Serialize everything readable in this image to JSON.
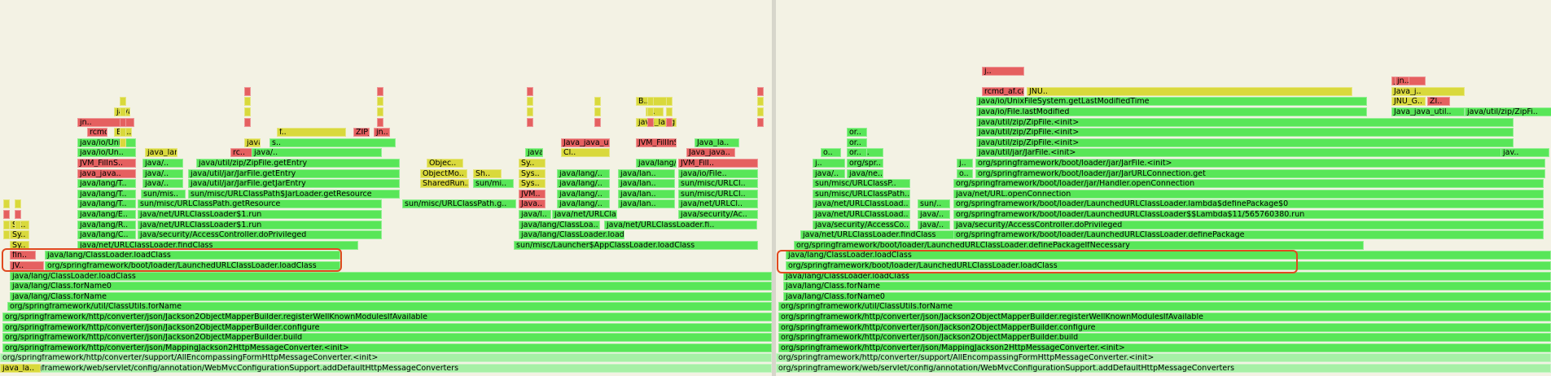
{
  "colors": {
    "background": "#f3f2e4",
    "green": "#58e658",
    "yellow": "#d9d93c",
    "red": "#e56060",
    "light": "#a6f0a6",
    "highlight": "#e04a20"
  },
  "left": {
    "frames": [
      {
        "label": "org/springframework/web/servlet/config/annotation/WebMvcConfigurationSupport.addDefaultHttpMessageConverters",
        "c": "light"
      },
      {
        "label": "org/springframework/http/converter/support/AllEncompassingFormHttpMessageConverter.<init>",
        "c": "light"
      },
      {
        "label": "org/springframework/http/converter/json/MappingJackson2HttpMessageConverter.<init>",
        "c": "green"
      },
      {
        "label": "org/springframework/http/converter/json/Jackson2ObjectMapperBuilder.build",
        "c": "green"
      },
      {
        "label": "org/springframework/http/converter/json/Jackson2ObjectMapperBuilder.configure",
        "c": "green"
      },
      {
        "label": "org/springframework/http/converter/json/Jackson2ObjectMapperBuilder.registerWellKnownModulesIfAvailable",
        "c": "green"
      },
      {
        "label": "org/springframework/util/ClassUtils.forName",
        "c": "green"
      },
      {
        "label": "java/lang/Class.forName",
        "c": "green"
      },
      {
        "label": "java/lang/Class.forName0",
        "c": "green"
      },
      {
        "label": "java/lang/ClassLoader.loadClass",
        "c": "green"
      },
      {
        "label": "JV..",
        "c": "red"
      },
      {
        "label": "org/springframework/boot/loader/LaunchedURLClassLoader.loadClass",
        "c": "green"
      },
      {
        "label": "fin..",
        "c": "red"
      },
      {
        "label": "java/lang/ClassLoader.loadClass",
        "c": "green"
      },
      {
        "label": "Sy..",
        "c": "yellow"
      },
      {
        "label": "java/net/URLClassLoader.findClass",
        "c": "green"
      },
      {
        "label": "sun/misc/Launcher$AppClassLoader.loadClass",
        "c": "green"
      },
      {
        "label": "Sy..",
        "c": "yellow"
      },
      {
        "label": "java/lang/C..",
        "c": "green"
      },
      {
        "label": "java/security/AccessController.doPrivileged",
        "c": "green"
      },
      {
        "label": "java/lang/ClassLoader.loadClass",
        "c": "green"
      },
      {
        "label": "Sy..",
        "c": "yellow"
      },
      {
        "label": "java/lang/R..",
        "c": "green"
      },
      {
        "label": "java/net/URLClassLoader$1.run",
        "c": "green"
      },
      {
        "label": "java/lang/ClassLoa..",
        "c": "green"
      },
      {
        "label": "java/net/URLClassLoader.fi..",
        "c": "green"
      },
      {
        "label": "java/lang/E..",
        "c": "green"
      },
      {
        "label": "java/net/URLClassLoader$1.run",
        "c": "green"
      },
      {
        "label": "java/l..",
        "c": "green"
      },
      {
        "label": "java/net/URLCla..",
        "c": "green"
      },
      {
        "label": "java/security/Ac..",
        "c": "green"
      },
      {
        "label": "java/lang/T..",
        "c": "green"
      },
      {
        "label": "sun/misc/URLClassPath.getResource",
        "c": "green"
      },
      {
        "label": "sun/misc/URLClassPath.g..",
        "c": "green"
      },
      {
        "label": "Java..",
        "c": "red"
      },
      {
        "label": "java/lang/..",
        "c": "green"
      },
      {
        "label": "java/lan..",
        "c": "green"
      },
      {
        "label": "java/net/URLCl..",
        "c": "green"
      },
      {
        "label": "java/lang/T..",
        "c": "green"
      },
      {
        "label": "sun/mis..",
        "c": "green"
      },
      {
        "label": "sun/misc/URLClassPath$JarLoader.getResource",
        "c": "green"
      },
      {
        "label": "JVM..",
        "c": "red"
      },
      {
        "label": "java/lang/..",
        "c": "green"
      },
      {
        "label": "java/lan..",
        "c": "green"
      },
      {
        "label": "sun/misc/URLCl..",
        "c": "green"
      },
      {
        "label": "java/lang/T..",
        "c": "green"
      },
      {
        "label": "java/..",
        "c": "green"
      },
      {
        "label": "java/util/jar/JarFile.getJarEntry",
        "c": "green"
      },
      {
        "label": "SharedRun..",
        "c": "yellow"
      },
      {
        "label": "sun/mi..",
        "c": "green"
      },
      {
        "label": "Sys..",
        "c": "yellow"
      },
      {
        "label": "java/lang/..",
        "c": "green"
      },
      {
        "label": "java/lan..",
        "c": "green"
      },
      {
        "label": "sun/misc/URLCl..",
        "c": "green"
      },
      {
        "label": "java_java..",
        "c": "red"
      },
      {
        "label": "java/..",
        "c": "green"
      },
      {
        "label": "java/util/jar/JarFile.getEntry",
        "c": "green"
      },
      {
        "label": "ObjectMo..",
        "c": "yellow"
      },
      {
        "label": "Sh..",
        "c": "yellow"
      },
      {
        "label": "Sys..",
        "c": "yellow"
      },
      {
        "label": "java/lang/..",
        "c": "green"
      },
      {
        "label": "java/lan..",
        "c": "green"
      },
      {
        "label": "java/io/File..",
        "c": "green"
      },
      {
        "label": "JVM_FillnS..",
        "c": "red"
      },
      {
        "label": "java/..",
        "c": "green"
      },
      {
        "label": "java/util/zip/ZipFile.getEntry",
        "c": "green"
      },
      {
        "label": "Objec..",
        "c": "yellow"
      },
      {
        "label": "Sy..",
        "c": "yellow"
      },
      {
        "label": "java/lang/..",
        "c": "green"
      },
      {
        "label": "JVM_Fill..",
        "c": "red"
      },
      {
        "label": "java/io/Un..",
        "c": "green"
      },
      {
        "label": "java_lang..",
        "c": "yellow"
      },
      {
        "label": "rc..",
        "c": "red"
      },
      {
        "label": "java/..",
        "c": "green"
      },
      {
        "label": "java/util/zip/ZipFile.getEntry",
        "c": "green"
      },
      {
        "label": "Cl..",
        "c": "yellow"
      },
      {
        "label": "Java_java..",
        "c": "red"
      },
      {
        "label": "java/io/Uni..",
        "c": "green"
      },
      {
        "label": "java_lang..",
        "c": "yellow"
      },
      {
        "label": "s..",
        "c": "green"
      },
      {
        "label": "Java_java_util_zip_ZipFile_g..",
        "c": "red"
      },
      {
        "label": "JVM_FillInS..",
        "c": "red"
      },
      {
        "label": "Java_la..",
        "c": "green"
      },
      {
        "label": "rcmd_af..",
        "c": "red"
      },
      {
        "label": "Ba..",
        "c": "yellow"
      },
      {
        "label": "f..",
        "c": "yellow"
      },
      {
        "label": "ZIP_GetEntry2",
        "c": "red"
      },
      {
        "label": "jn..",
        "c": "red"
      },
      {
        "label": "jn..",
        "c": "red"
      },
      {
        "label": "java_lang..",
        "c": "yellow"
      },
      {
        "label": "java_la..",
        "c": "yellow"
      },
      {
        "label": "f..",
        "c": "yellow"
      },
      {
        "label": "B..",
        "c": "yellow"
      },
      {
        "label": "java_la..",
        "c": "yellow"
      }
    ],
    "highlight_label": "left-highlight"
  },
  "right": {
    "frames": [
      {
        "label": "org/springframework/web/servlet/config/annotation/WebMvcConfigurationSupport.addDefaultHttpMessageConverters",
        "c": "light"
      },
      {
        "label": "org/springframework/http/converter/support/AllEncompassingFormHttpMessageConverter.<init>",
        "c": "light"
      },
      {
        "label": "org/springframework/http/converter/json/MappingJackson2HttpMessageConverter.<init>",
        "c": "green"
      },
      {
        "label": "org/springframework/http/converter/json/Jackson2ObjectMapperBuilder.build",
        "c": "green"
      },
      {
        "label": "org/springframework/http/converter/json/Jackson2ObjectMapperBuilder.configure",
        "c": "green"
      },
      {
        "label": "org/springframework/http/converter/json/Jackson2ObjectMapperBuilder.registerWellKnownModulesIfAvailable",
        "c": "green"
      },
      {
        "label": "org/springframework/util/ClassUtils.forName",
        "c": "green"
      },
      {
        "label": "java/lang/Class.forName0",
        "c": "green"
      },
      {
        "label": "java/lang/Class.forName",
        "c": "green"
      },
      {
        "label": "java/lang/ClassLoader.loadClass",
        "c": "green"
      },
      {
        "label": "org/springframework/boot/loader/LaunchedURLClassLoader.loadClass",
        "c": "green"
      },
      {
        "label": "java/lang/ClassLoader.loadClass",
        "c": "green"
      },
      {
        "label": "org/springframework/boot/loader/LaunchedURLClassLoader.definePackageIfNecessary",
        "c": "green"
      },
      {
        "label": "java/net/URLClassLoader.findClass",
        "c": "green"
      },
      {
        "label": "org/springframework/boot/loader/LaunchedURLClassLoader.definePackage",
        "c": "green"
      },
      {
        "label": "java/security/AccessCo..",
        "c": "green"
      },
      {
        "label": "java/..",
        "c": "green"
      },
      {
        "label": "java/security/AccessController.doPrivileged",
        "c": "green"
      },
      {
        "label": "java/net/URLClassLoad..",
        "c": "green"
      },
      {
        "label": "java/..",
        "c": "green"
      },
      {
        "label": "org/springframework/boot/loader/LaunchedURLClassLoader$$Lambda$11/565760380.run",
        "c": "green"
      },
      {
        "label": "java/net/URLClassLoad..",
        "c": "green"
      },
      {
        "label": "sun/..",
        "c": "green"
      },
      {
        "label": "org/springframework/boot/loader/LaunchedURLClassLoader.lambda$definePackage$0",
        "c": "green"
      },
      {
        "label": "sun/misc/URLClassPath..",
        "c": "green"
      },
      {
        "label": "java/net/URL.openConnection",
        "c": "green"
      },
      {
        "label": "sun/misc/URLClassP..",
        "c": "green"
      },
      {
        "label": "org/springframework/boot/loader/jar/Handler.openConnection",
        "c": "green"
      },
      {
        "label": "java/..",
        "c": "green"
      },
      {
        "label": "java/ne..",
        "c": "green"
      },
      {
        "label": "o..",
        "c": "green"
      },
      {
        "label": "org/springframework/boot/loader/jar/JarURLConnection.get",
        "c": "green"
      },
      {
        "label": "j..",
        "c": "green"
      },
      {
        "label": "org/spr..",
        "c": "green"
      },
      {
        "label": "j..",
        "c": "green"
      },
      {
        "label": "org/springframework/boot/loader/jar/JarFile.<init>",
        "c": "green"
      },
      {
        "label": "org/..",
        "c": "green"
      },
      {
        "label": "o..",
        "c": "green"
      },
      {
        "label": "or..",
        "c": "green"
      },
      {
        "label": "java/util/jar/JarFile.<init>",
        "c": "green"
      },
      {
        "label": "java/..",
        "c": "green"
      },
      {
        "label": "or..",
        "c": "green"
      },
      {
        "label": "java/util/zip/ZipFile.<init>",
        "c": "green"
      },
      {
        "label": "java/..",
        "c": "green"
      },
      {
        "label": "or..",
        "c": "green"
      },
      {
        "label": "java/util/zip/ZipFile.<init>",
        "c": "green"
      },
      {
        "label": "jav..",
        "c": "green"
      },
      {
        "label": "java/util/zip/ZipFile.<init>",
        "c": "green"
      },
      {
        "label": "java/io/File.lastModified",
        "c": "green"
      },
      {
        "label": "Java_java_util..",
        "c": "green"
      },
      {
        "label": "java/util/zip/ZipFi..",
        "c": "green"
      },
      {
        "label": "java/io/UnixFileSystem.getLastModifiedTime",
        "c": "green"
      },
      {
        "label": "JNU_G..",
        "c": "yellow"
      },
      {
        "label": "ZI..",
        "c": "red"
      },
      {
        "label": "Java_j..",
        "c": "yellow"
      },
      {
        "label": "rcmd_af.canonnamebuf",
        "c": "red"
      },
      {
        "label": "JNU..",
        "c": "yellow"
      },
      {
        "label": "jn..",
        "c": "red"
      },
      {
        "label": "jn..",
        "c": "red"
      },
      {
        "label": "j..",
        "c": "red"
      }
    ],
    "highlight_label": "right-highlight"
  }
}
